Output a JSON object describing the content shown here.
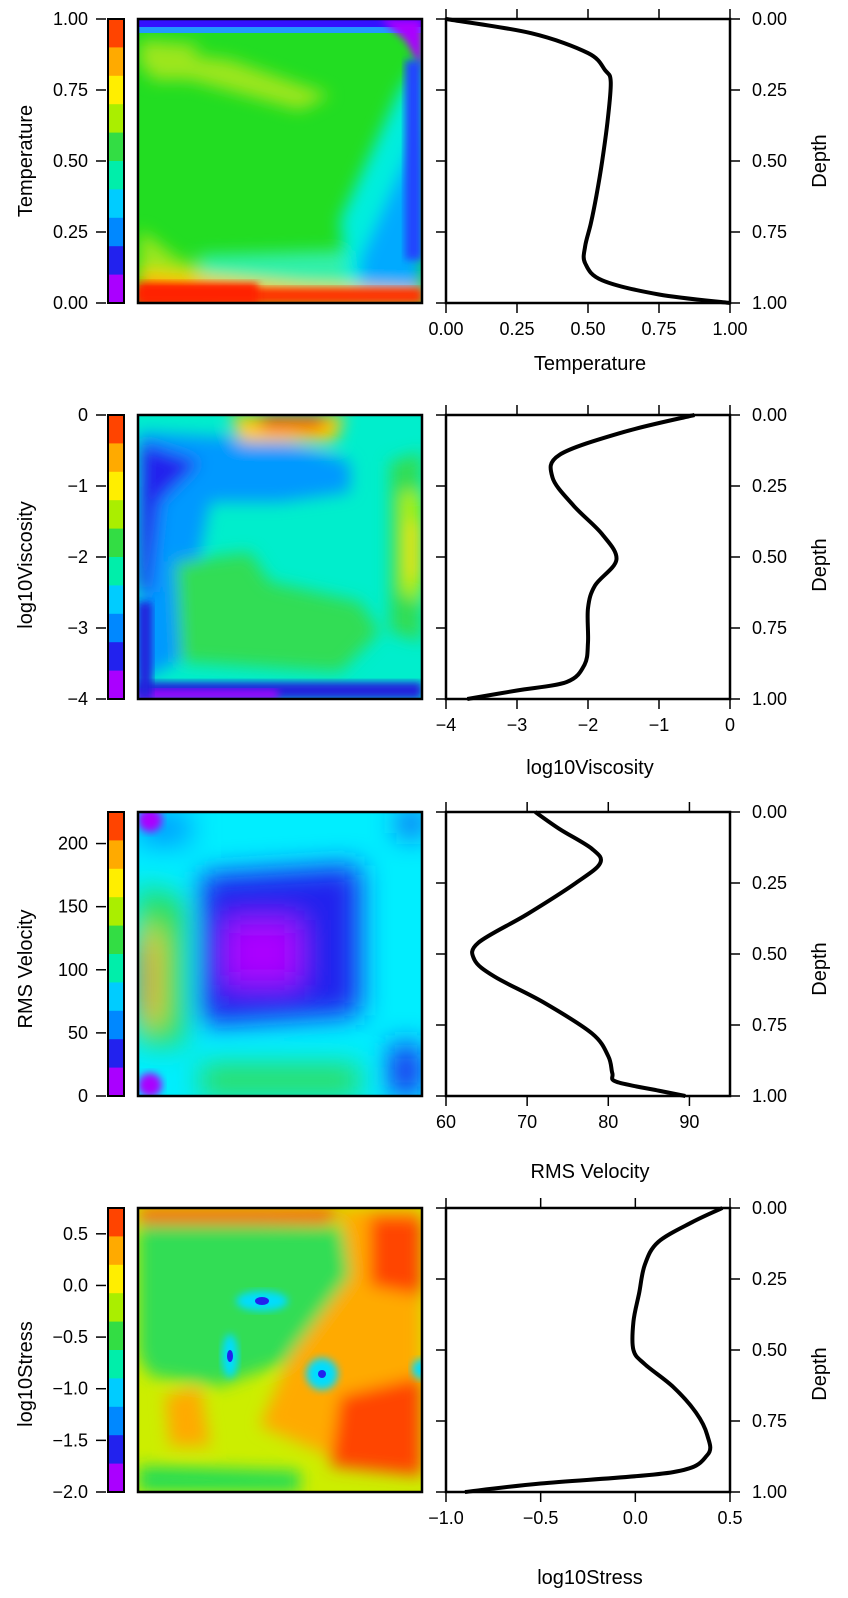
{
  "chart_data": [
    {
      "type": "line",
      "ylabel": "Temperature",
      "xlabel": "Temperature",
      "depth_label": "Depth",
      "colorbar_range": [
        0,
        1
      ],
      "colorbar_ticks": [
        "1.00",
        "0.75",
        "0.50",
        "0.25",
        "0.00"
      ],
      "xlim": [
        0,
        1
      ],
      "x_ticks": [
        "0.00",
        "0.25",
        "0.50",
        "0.75",
        "1.00"
      ],
      "depth_ticks": [
        "0.00",
        "0.25",
        "0.50",
        "0.75",
        "1.00"
      ],
      "profile": {
        "x": [
          0.0,
          0.3,
          0.5,
          0.56,
          0.58,
          0.57,
          0.55,
          0.53,
          0.51,
          0.49,
          0.49,
          0.55,
          0.75,
          1.0
        ],
        "depth": [
          0.0,
          0.05,
          0.12,
          0.18,
          0.22,
          0.35,
          0.5,
          0.62,
          0.72,
          0.8,
          0.86,
          0.92,
          0.97,
          1.0
        ]
      }
    },
    {
      "type": "line",
      "ylabel": "log10Viscosity",
      "xlabel": "log10Viscosity",
      "depth_label": "Depth",
      "colorbar_range": [
        -4,
        0
      ],
      "colorbar_ticks": [
        "0",
        "−1",
        "−2",
        "−3",
        "−4"
      ],
      "xlim": [
        -4,
        0
      ],
      "x_ticks": [
        "−4",
        "−3",
        "−2",
        "−1",
        "0"
      ],
      "depth_ticks": [
        "0.00",
        "0.25",
        "0.50",
        "0.75",
        "1.00"
      ],
      "profile": {
        "x": [
          -0.5,
          -1.5,
          -2.4,
          -2.5,
          -2.2,
          -1.8,
          -1.6,
          -1.9,
          -2.0,
          -2.0,
          -2.05,
          -2.3,
          -3.0,
          -3.7
        ],
        "depth": [
          0.0,
          0.06,
          0.14,
          0.22,
          0.32,
          0.42,
          0.51,
          0.6,
          0.68,
          0.8,
          0.88,
          0.94,
          0.97,
          1.0
        ]
      }
    },
    {
      "type": "line",
      "ylabel": "RMS Velocity",
      "xlabel": "RMS Velocity",
      "depth_label": "Depth",
      "colorbar_range": [
        0,
        225
      ],
      "colorbar_ticks": [
        "200",
        "150",
        "100",
        "50",
        "0"
      ],
      "xlim": [
        60,
        95
      ],
      "x_ticks": [
        "60",
        "70",
        "80",
        "90"
      ],
      "depth_ticks": [
        "0.00",
        "0.25",
        "0.50",
        "0.75",
        "1.00"
      ],
      "profile": {
        "x": [
          71,
          74,
          78,
          79,
          76,
          70,
          64,
          63.5,
          66,
          72,
          78,
          80,
          80.5,
          81,
          86,
          89.5
        ],
        "depth": [
          0.0,
          0.06,
          0.13,
          0.18,
          0.25,
          0.36,
          0.46,
          0.52,
          0.58,
          0.67,
          0.78,
          0.86,
          0.92,
          0.95,
          0.98,
          1.0
        ]
      }
    },
    {
      "type": "line",
      "ylabel": "log10Stress",
      "xlabel": "log10Stress",
      "depth_label": "Depth",
      "colorbar_range": [
        -2.0,
        0.75
      ],
      "colorbar_ticks": [
        "0.5",
        "0.0",
        "−0.5",
        "−1.0",
        "−1.5",
        "−2.0"
      ],
      "xlim": [
        -1.0,
        0.5
      ],
      "x_ticks": [
        "−1.0",
        "−0.5",
        "0.0",
        "0.5"
      ],
      "depth_ticks": [
        "0.00",
        "0.25",
        "0.50",
        "0.75",
        "1.00"
      ],
      "profile": {
        "x": [
          0.46,
          0.3,
          0.12,
          0.05,
          0.02,
          -0.01,
          -0.01,
          0.05,
          0.2,
          0.32,
          0.38,
          0.38,
          0.2,
          -0.5,
          -0.9
        ],
        "depth": [
          0.0,
          0.05,
          0.12,
          0.2,
          0.3,
          0.4,
          0.5,
          0.55,
          0.63,
          0.72,
          0.8,
          0.87,
          0.93,
          0.97,
          1.0
        ]
      }
    }
  ]
}
